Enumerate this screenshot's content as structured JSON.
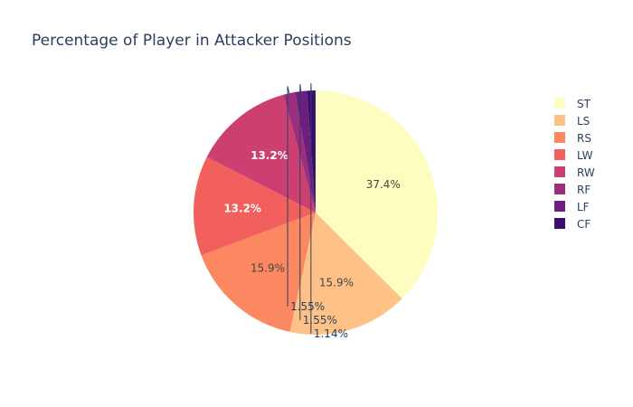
{
  "chart_data": {
    "type": "pie",
    "title": "Percentage of Player in Attacker Positions",
    "labels": [
      "ST",
      "LS",
      "RS",
      "LW",
      "RW",
      "RF",
      "LF",
      "CF"
    ],
    "values": [
      37.4,
      15.9,
      15.9,
      13.2,
      13.2,
      1.55,
      1.55,
      1.14
    ],
    "percent_labels": [
      "37.4%",
      "15.9%",
      "15.9%",
      "13.2%",
      "13.2%",
      "1.55%",
      "1.55%",
      "1.14%"
    ],
    "colors": [
      "#fcfdbf",
      "#fec287",
      "#fb8861",
      "#f1605d",
      "#cc3f71",
      "#9c2e7f",
      "#6e1e81",
      "#3b0f70"
    ],
    "legend_position": "right",
    "direction": "clockwise",
    "start_angle": "top"
  }
}
